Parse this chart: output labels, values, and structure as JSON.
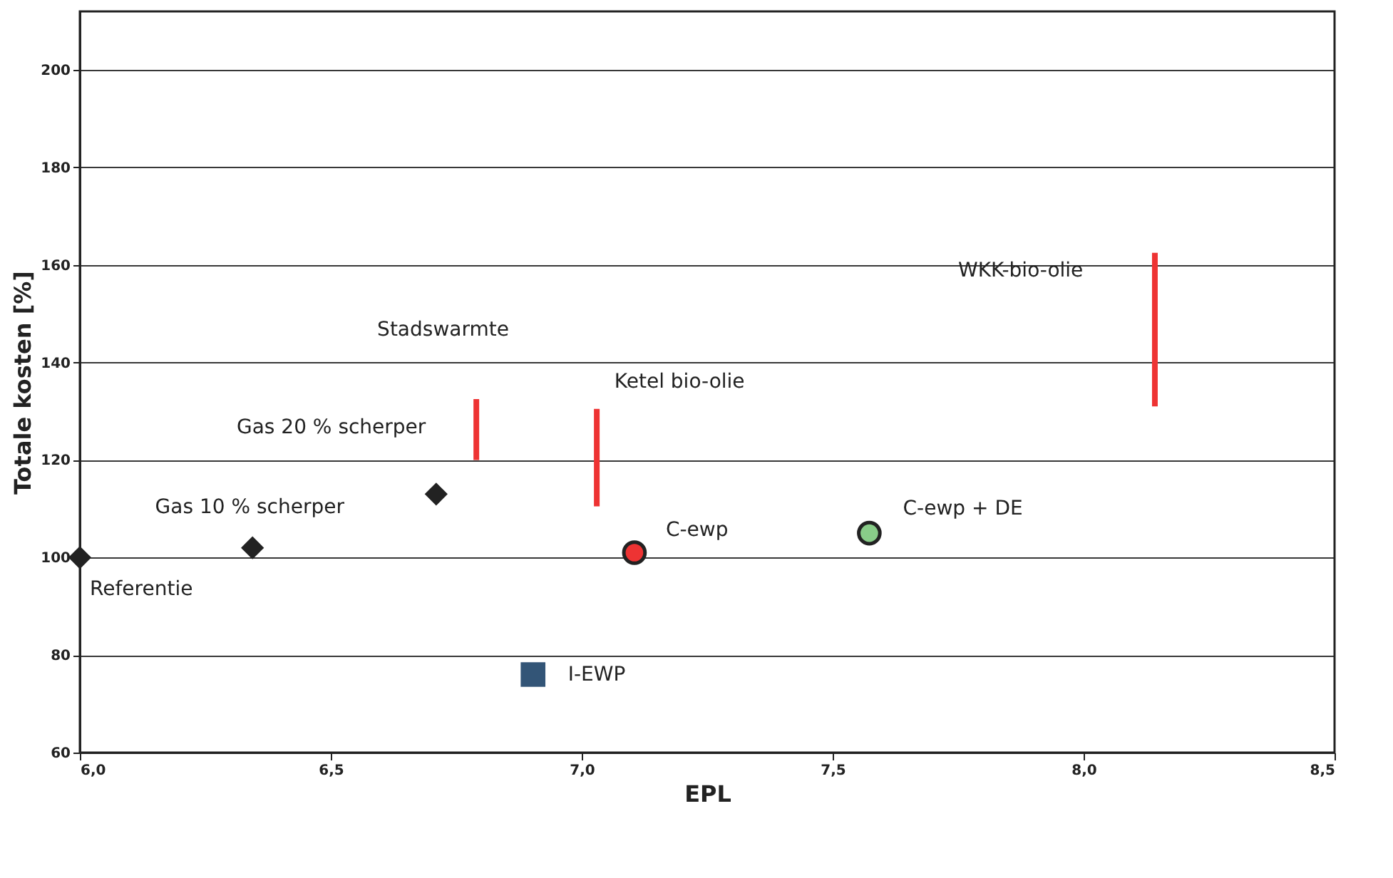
{
  "chart_data": {
    "type": "scatter",
    "xlabel": "EPL",
    "ylabel": "Totale kosten [%]",
    "xlim": [
      6.0,
      8.5
    ],
    "ylim": [
      60,
      212
    ],
    "xticks": [
      {
        "value": 6.0,
        "label": "6,0"
      },
      {
        "value": 6.5,
        "label": "6,5"
      },
      {
        "value": 7.0,
        "label": "7,0"
      },
      {
        "value": 7.5,
        "label": "7,5"
      },
      {
        "value": 8.0,
        "label": "8,0"
      },
      {
        "value": 8.5,
        "label": "8,5"
      }
    ],
    "yticks": [
      60,
      80,
      100,
      120,
      140,
      160,
      180,
      200
    ],
    "grid": "y",
    "series": [
      {
        "marker": "diamond",
        "color": "#222222",
        "x": [
          6.0,
          6.344,
          6.71
        ],
        "values": [
          100,
          102,
          113
        ]
      },
      {
        "marker": "circle",
        "color": "#ee3333",
        "x": [
          7.105
        ],
        "values": [
          101
        ]
      },
      {
        "marker": "circle",
        "color": "#88cc88",
        "x": [
          7.573
        ],
        "values": [
          105
        ]
      },
      {
        "marker": "square",
        "color": "#335577",
        "x": [
          6.903
        ],
        "values": [
          76
        ]
      },
      {
        "type": "bar",
        "color": "#ee3333",
        "x": [
          6.79,
          7.03,
          8.142
        ],
        "base": [
          120,
          110.5,
          131
        ],
        "values": [
          12.5,
          20,
          31.5
        ]
      }
    ],
    "annotations": [
      "Stadswarmte",
      "Gas 20 % scherper",
      "Gas 10 % scherper",
      "Referentie",
      "Ketel bio-olie",
      "WKK-bio-olie",
      "C-ewp",
      "C-ewp + DE",
      "I-EWP"
    ]
  }
}
